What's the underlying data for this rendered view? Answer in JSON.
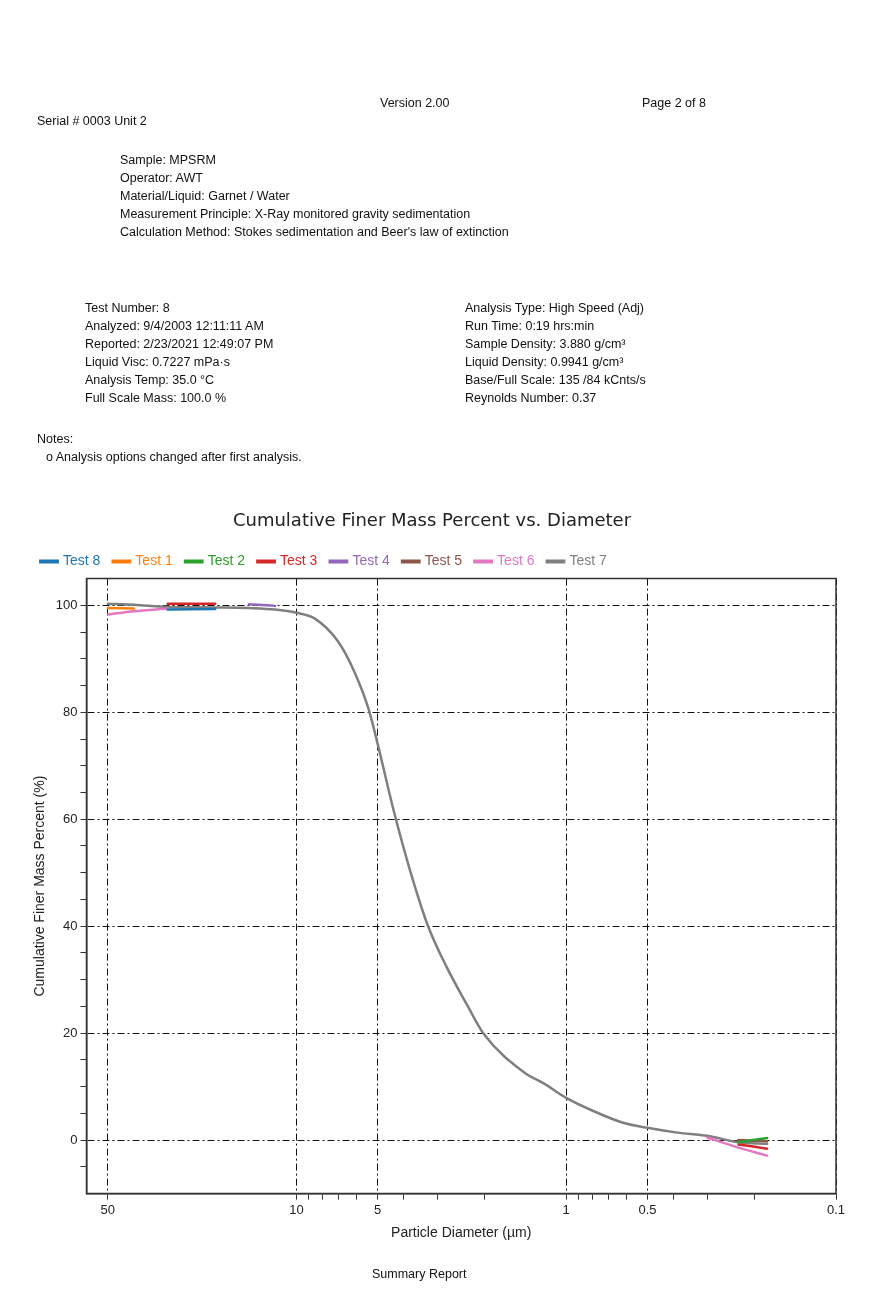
{
  "chart_data": {
    "type": "line",
    "title": "Cumulative Finer Mass Percent vs. Diameter",
    "xlabel": "Particle Diameter (µm)",
    "ylabel": "Cumulative Finer Mass Percent (%)",
    "annotations": [
      "Version 2.00",
      "Page 2 of 8",
      "Serial # 0003  Unit 2",
      "Sample: MPSRM",
      "Operator: AWT",
      "Material/Liquid: Garnet / Water",
      "Measurement Principle: X-Ray monitored gravity sedimentation",
      "Calculation Method: Stokes sedimentation and Beer's law of extinction",
      "Test Number: 8",
      "Analyzed: 9/4/2003 12:11:11 AM",
      "Reported: 2/23/2021 12:49:07 PM",
      "Liquid Visc: 0.7227 mPa·s",
      "Analysis Temp: 35.0 °C",
      "Full Scale Mass: 100.0 %",
      "Analysis Type: High Speed (Adj)",
      "Run Time: 0:19 hrs:min",
      "Sample Density: 3.880 g/cm³",
      "Liquid Density: 0.9941 g/cm³",
      "Base/Full Scale: 135 /84 kCnts/s",
      "Reynolds Number: 0.37",
      "Notes:",
      "o Analysis options changed after first analysis.",
      "Summary Report"
    ],
    "x": [
      50,
      40,
      30,
      20,
      15,
      12,
      10,
      8.6,
      7,
      6.1,
      5.4,
      5,
      4.38,
      3.8,
      3.25,
      2.77,
      2.32,
      2.03,
      1.41,
      1.22,
      1,
      0.79,
      0.62,
      0.5,
      0.387,
      0.3,
      0.23,
      0.18
    ],
    "series": [
      {
        "name": "Test 8",
        "color": "#1f77b4",
        "values": [
          null,
          null,
          99.2,
          99.3,
          null,
          null,
          null,
          null,
          null,
          null,
          null,
          null,
          null,
          null,
          null,
          null,
          null,
          null,
          null,
          null,
          null,
          null,
          null,
          null,
          null,
          null,
          null,
          null
        ]
      },
      {
        "name": "Test 1",
        "color": "#ff7f0e",
        "values": [
          99.5,
          99.4,
          null,
          null,
          null,
          null,
          null,
          null,
          null,
          null,
          null,
          null,
          null,
          null,
          null,
          null,
          null,
          null,
          null,
          null,
          null,
          null,
          null,
          null,
          null,
          null,
          null,
          null
        ]
      },
      {
        "name": "Test 2",
        "color": "#2ca02c",
        "values": [
          null,
          null,
          null,
          null,
          null,
          null,
          null,
          null,
          null,
          null,
          null,
          null,
          null,
          null,
          null,
          null,
          null,
          null,
          null,
          null,
          null,
          null,
          null,
          null,
          null,
          null,
          -0.4,
          0.4
        ]
      },
      {
        "name": "Test 3",
        "color": "#d62728",
        "values": [
          null,
          null,
          100.3,
          100.3,
          null,
          null,
          null,
          null,
          null,
          null,
          null,
          null,
          null,
          null,
          null,
          null,
          null,
          null,
          null,
          null,
          null,
          null,
          null,
          null,
          null,
          null,
          -0.8,
          -1.6
        ]
      },
      {
        "name": "Test 4",
        "color": "#9467bd",
        "values": [
          null,
          null,
          null,
          null,
          100.2,
          99.9,
          null,
          null,
          null,
          null,
          null,
          null,
          null,
          null,
          null,
          null,
          null,
          null,
          null,
          null,
          null,
          null,
          null,
          null,
          null,
          null,
          null,
          null
        ]
      },
      {
        "name": "Test 5",
        "color": "#8c564b",
        "values": [
          null,
          null,
          null,
          null,
          null,
          null,
          null,
          null,
          null,
          null,
          null,
          null,
          null,
          null,
          null,
          null,
          null,
          null,
          null,
          null,
          null,
          null,
          null,
          null,
          null,
          null,
          0,
          -0.2
        ]
      },
      {
        "name": "Test 6",
        "color": "#e377c2",
        "values": [
          98.3,
          98.9,
          99.4,
          null,
          null,
          null,
          null,
          null,
          null,
          null,
          null,
          null,
          null,
          null,
          null,
          null,
          null,
          null,
          null,
          null,
          null,
          null,
          null,
          null,
          null,
          0.5,
          -1.4,
          -2.9
        ]
      },
      {
        "name": "Test 7",
        "color": "#7f7f7f",
        "values": [
          100.3,
          100.1,
          99.7,
          99.6,
          99.5,
          99.2,
          98.6,
          97.6,
          93.2,
          87.6,
          80.6,
          74.1,
          62,
          50.6,
          40,
          32.3,
          25.1,
          20,
          12.4,
          10.7,
          7.9,
          5.4,
          3.3,
          2.3,
          1.4,
          0.8,
          -0.4,
          -0.7
        ]
      }
    ],
    "xlim": [
      60,
      0.1
    ],
    "xticks": [
      50,
      10,
      {
        "value": 9,
        "label": null
      },
      {
        "value": 8,
        "label": null
      },
      {
        "value": 7,
        "label": null
      },
      {
        "value": 6,
        "label": null
      },
      5,
      {
        "value": 4,
        "label": null
      },
      {
        "value": 3,
        "label": null
      },
      {
        "value": 2,
        "label": null
      },
      1,
      {
        "value": 0.9,
        "label": null
      },
      {
        "value": 0.8,
        "label": null
      },
      {
        "value": 0.7,
        "label": null
      },
      {
        "value": 0.6,
        "label": null
      },
      0.5,
      {
        "value": 0.4,
        "label": null
      },
      {
        "value": 0.3,
        "label": null
      },
      {
        "value": 0.2,
        "label": null
      },
      0.1
    ],
    "ylim": [
      -10,
      105
    ],
    "yticks": [
      {
        "value": -5,
        "label": null
      },
      0,
      {
        "value": 5,
        "label": null
      },
      {
        "value": 10,
        "label": null
      },
      {
        "value": 15,
        "label": null
      },
      20,
      {
        "value": 25,
        "label": null
      },
      {
        "value": 30,
        "label": null
      },
      {
        "value": 35,
        "label": null
      },
      40,
      {
        "value": 45,
        "label": null
      },
      {
        "value": 50,
        "label": null
      },
      {
        "value": 55,
        "label": null
      },
      60,
      {
        "value": 65,
        "label": null
      },
      {
        "value": 70,
        "label": null
      },
      {
        "value": 75,
        "label": null
      },
      80,
      {
        "value": 85,
        "label": null
      },
      {
        "value": 90,
        "label": null
      },
      {
        "value": 95,
        "label": null
      },
      100
    ],
    "log": "x",
    "grid": true,
    "legend": "top",
    "marker": "none",
    "line_style": "solid"
  }
}
